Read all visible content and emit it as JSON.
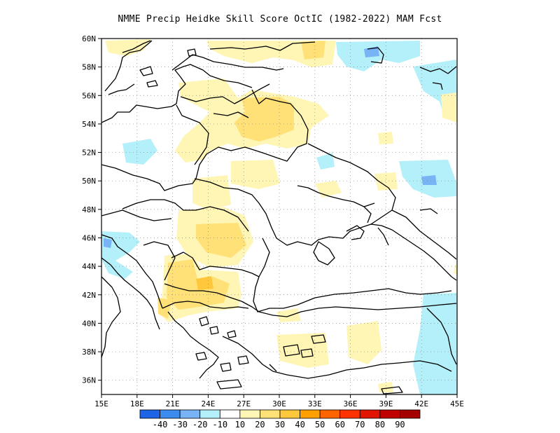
{
  "title": "NMME Precip Heidke Skill Score OctIC (1982-2022) MAM Fcst",
  "map": {
    "lon_range": [
      15,
      45
    ],
    "lat_range": [
      35,
      60
    ],
    "lon_ticks": [
      "15E",
      "18E",
      "21E",
      "24E",
      "27E",
      "30E",
      "33E",
      "36E",
      "39E",
      "42E",
      "45E"
    ],
    "lat_ticks": [
      "36N",
      "38N",
      "40N",
      "42N",
      "44N",
      "46N",
      "48N",
      "50N",
      "52N",
      "54N",
      "56N",
      "58N",
      "60N"
    ],
    "grid": true
  },
  "colorbar": {
    "labels": [
      "-40",
      "-30",
      "-20",
      "-10",
      "10",
      "20",
      "30",
      "40",
      "50",
      "60",
      "70",
      "80",
      "90"
    ],
    "colors": [
      "#1e64e6",
      "#3c8cf0",
      "#78b4f5",
      "#b4f0fa",
      "#ffffff",
      "#fff5b4",
      "#ffe178",
      "#ffc83c",
      "#ffa000",
      "#ff6400",
      "#ff3200",
      "#e11400",
      "#c00000",
      "#a50000"
    ]
  }
}
